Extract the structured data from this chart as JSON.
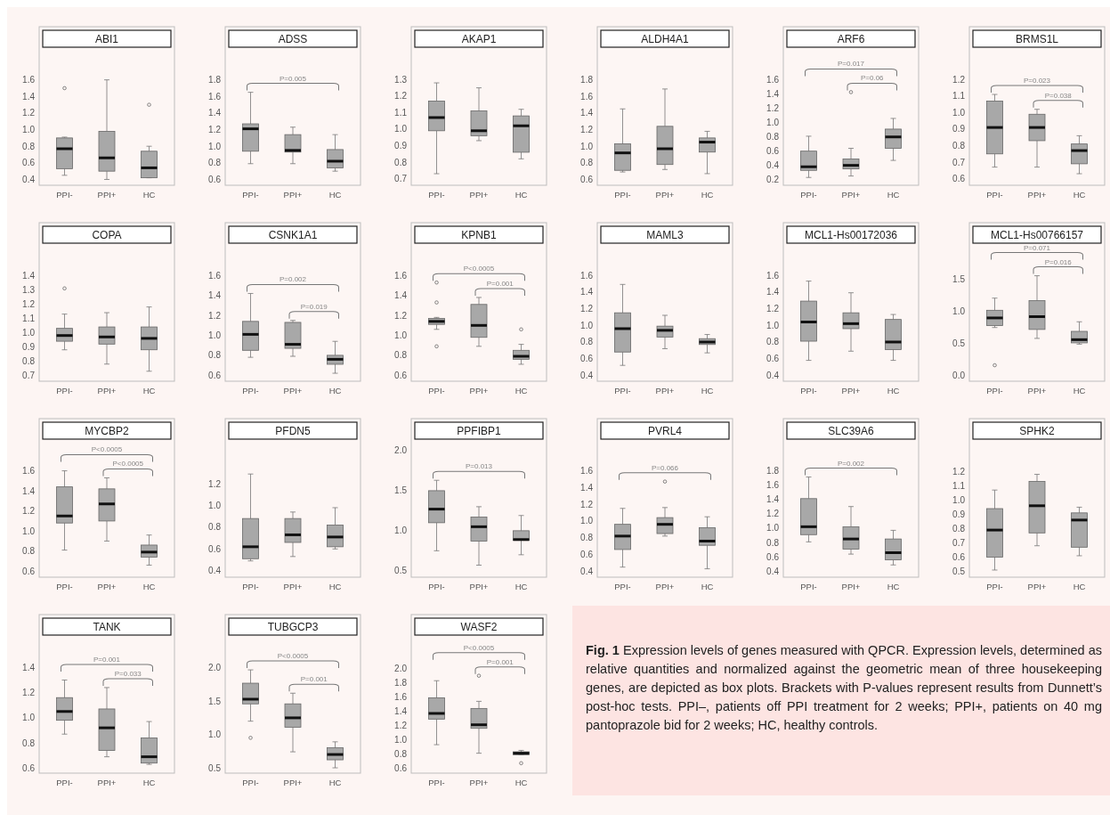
{
  "chart_data": [
    {
      "type": "box",
      "title": "ABI1",
      "categories": [
        "PPI-",
        "PPI+",
        "HC"
      ],
      "ylim": [
        0.33,
        2.24
      ],
      "yticks": [
        0.4,
        0.6,
        0.8,
        {
          "value": 1,
          "label": "1.0"
        },
        1.2,
        1.4,
        1.6
      ],
      "series": [
        {
          "color": "#a8a8a8",
          "boxes": [
            {
              "low": 0.45,
              "q1": 0.53,
              "median": 0.77,
              "q3": 0.9,
              "high": 0.91,
              "outliers": [
                1.5
              ]
            },
            {
              "low": 0.4,
              "q1": 0.5,
              "median": 0.66,
              "q3": 0.98,
              "high": 1.6
            },
            {
              "low": 0.42,
              "q1": 0.42,
              "median": 0.54,
              "q3": 0.74,
              "high": 0.8,
              "outliers": [
                1.3
              ]
            }
          ]
        }
      ]
    },
    {
      "type": "box",
      "title": "ADSS",
      "categories": [
        "PPI-",
        "PPI+",
        "HC"
      ],
      "ylim": [
        0.53,
        2.44
      ],
      "yticks": [
        0.6,
        0.8,
        {
          "value": 1,
          "label": "1.0"
        },
        1.2,
        1.4,
        1.6,
        1.8
      ],
      "annotations": [
        "P=0.005"
      ],
      "series": [
        {
          "color": "#a8a8a8",
          "boxes": [
            {
              "low": 0.79,
              "q1": 0.94,
              "median": 1.21,
              "q3": 1.27,
              "high": 1.65
            },
            {
              "low": 0.79,
              "q1": 0.93,
              "median": 0.95,
              "q3": 1.14,
              "high": 1.23
            },
            {
              "low": 0.7,
              "q1": 0.74,
              "median": 0.82,
              "q3": 0.96,
              "high": 1.14
            }
          ]
        }
      ]
    },
    {
      "type": "box",
      "title": "AKAP1",
      "categories": [
        "PPI-",
        "PPI+",
        "HC"
      ],
      "ylim": [
        0.66,
        1.62
      ],
      "yticks": [
        0.7,
        0.8,
        0.9,
        {
          "value": 1,
          "label": "1.0"
        },
        1.1,
        1.2,
        1.3
      ],
      "series": [
        {
          "color": "#a8a8a8",
          "boxes": [
            {
              "low": 0.73,
              "q1": 0.99,
              "median": 1.07,
              "q3": 1.17,
              "high": 1.28
            },
            {
              "low": 0.93,
              "q1": 0.96,
              "median": 0.99,
              "q3": 1.11,
              "high": 1.25
            },
            {
              "low": 0.82,
              "q1": 0.86,
              "median": 1.02,
              "q3": 1.08,
              "high": 1.12
            }
          ]
        }
      ]
    },
    {
      "type": "box",
      "title": "ALDH4A1",
      "categories": [
        "PPI-",
        "PPI+",
        "HC"
      ],
      "ylim": [
        0.53,
        2.44
      ],
      "yticks": [
        0.6,
        0.8,
        {
          "value": 1,
          "label": "1.0"
        },
        1.2,
        1.4,
        1.6,
        1.8
      ],
      "series": [
        {
          "color": "#a8a8a8",
          "boxes": [
            {
              "low": 0.69,
              "q1": 0.71,
              "median": 0.92,
              "q3": 1.03,
              "high": 1.45
            },
            {
              "low": 0.72,
              "q1": 0.78,
              "median": 0.97,
              "q3": 1.24,
              "high": 1.69
            },
            {
              "low": 0.67,
              "q1": 0.93,
              "median": 1.05,
              "q3": 1.1,
              "high": 1.18
            }
          ]
        }
      ]
    },
    {
      "type": "box",
      "title": "ARF6",
      "categories": [
        "PPI-",
        "PPI+",
        "HC"
      ],
      "ylim": [
        0.12,
        2.35
      ],
      "yticks": [
        0.2,
        0.4,
        0.6,
        0.8,
        {
          "value": 1,
          "label": "1.0"
        },
        1.2,
        1.4,
        1.6
      ],
      "annotations": [
        "P=0.017",
        "P=0.06"
      ],
      "series": [
        {
          "color": "#a8a8a8",
          "boxes": [
            {
              "low": 0.23,
              "q1": 0.33,
              "median": 0.38,
              "q3": 0.6,
              "high": 0.81
            },
            {
              "low": 0.25,
              "q1": 0.35,
              "median": 0.4,
              "q3": 0.49,
              "high": 0.64,
              "outliers": [
                1.43
              ]
            },
            {
              "low": 0.47,
              "q1": 0.64,
              "median": 0.8,
              "q3": 0.91,
              "high": 1.06
            }
          ]
        }
      ]
    },
    {
      "type": "box",
      "title": "BRMS1L",
      "categories": [
        "PPI-",
        "PPI+",
        "HC"
      ],
      "ylim": [
        0.56,
        1.52
      ],
      "yticks": [
        0.6,
        0.7,
        0.8,
        0.9,
        {
          "value": 1,
          "label": "1.0"
        },
        1.1,
        1.2
      ],
      "annotations": [
        "P=0.023",
        "P=0.038"
      ],
      "series": [
        {
          "color": "#a8a8a8",
          "boxes": [
            {
              "low": 0.67,
              "q1": 0.75,
              "median": 0.91,
              "q3": 1.07,
              "high": 1.11
            },
            {
              "low": 0.67,
              "q1": 0.83,
              "median": 0.91,
              "q3": 0.99,
              "high": 1.02
            },
            {
              "low": 0.63,
              "q1": 0.69,
              "median": 0.77,
              "q3": 0.81,
              "high": 0.86
            }
          ]
        }
      ]
    },
    {
      "type": "box",
      "title": "COPA",
      "categories": [
        "PPI-",
        "PPI+",
        "HC"
      ],
      "ylim": [
        0.66,
        1.77
      ],
      "yticks": [
        0.7,
        0.8,
        0.9,
        {
          "value": 1,
          "label": "1.0"
        },
        1.1,
        1.2,
        1.3,
        1.4
      ],
      "series": [
        {
          "color": "#a8a8a8",
          "boxes": [
            {
              "low": 0.88,
              "q1": 0.94,
              "median": 0.98,
              "q3": 1.03,
              "high": 1.13,
              "outliers": [
                1.31
              ]
            },
            {
              "low": 0.78,
              "q1": 0.92,
              "median": 0.97,
              "q3": 1.04,
              "high": 1.14
            },
            {
              "low": 0.73,
              "q1": 0.88,
              "median": 0.96,
              "q3": 1.04,
              "high": 1.18
            }
          ]
        }
      ]
    },
    {
      "type": "box",
      "title": "CSNK1A1",
      "categories": [
        "PPI-",
        "PPI+",
        "HC"
      ],
      "ylim": [
        0.54,
        2.13
      ],
      "yticks": [
        0.6,
        0.8,
        {
          "value": 1,
          "label": "1.0"
        },
        1.2,
        1.4,
        1.6
      ],
      "annotations": [
        "P=0.002",
        "P=0.019"
      ],
      "series": [
        {
          "color": "#a8a8a8",
          "boxes": [
            {
              "low": 0.78,
              "q1": 0.85,
              "median": 1.01,
              "q3": 1.14,
              "high": 1.42
            },
            {
              "low": 0.79,
              "q1": 0.87,
              "median": 0.91,
              "q3": 1.13,
              "high": 1.15
            },
            {
              "low": 0.62,
              "q1": 0.71,
              "median": 0.76,
              "q3": 0.8,
              "high": 0.94
            }
          ]
        }
      ]
    },
    {
      "type": "box",
      "title": "KPNB1",
      "categories": [
        "PPI-",
        "PPI+",
        "HC"
      ],
      "ylim": [
        0.54,
        2.13
      ],
      "yticks": [
        0.6,
        0.8,
        {
          "value": 1,
          "label": "1.0"
        },
        1.2,
        1.4,
        1.6
      ],
      "annotations": [
        "P<0.0005",
        "P=0.001"
      ],
      "series": [
        {
          "color": "#a8a8a8",
          "boxes": [
            {
              "low": 1.06,
              "q1": 1.11,
              "median": 1.14,
              "q3": 1.17,
              "high": 1.18,
              "outliers": [
                1.53,
                1.33,
                0.89
              ]
            },
            {
              "low": 0.89,
              "q1": 0.98,
              "median": 1.1,
              "q3": 1.31,
              "high": 1.38
            },
            {
              "low": 0.71,
              "q1": 0.76,
              "median": 0.79,
              "q3": 0.85,
              "high": 0.91,
              "outliers": [
                1.06
              ]
            }
          ]
        }
      ]
    },
    {
      "type": "box",
      "title": "MAML3",
      "categories": [
        "PPI-",
        "PPI+",
        "HC"
      ],
      "ylim": [
        0.33,
        2.23
      ],
      "yticks": [
        0.4,
        0.6,
        0.8,
        {
          "value": 1,
          "label": "1.0"
        },
        1.2,
        1.4,
        1.6
      ],
      "series": [
        {
          "color": "#a8a8a8",
          "boxes": [
            {
              "low": 0.52,
              "q1": 0.68,
              "median": 0.96,
              "q3": 1.15,
              "high": 1.49
            },
            {
              "low": 0.72,
              "q1": 0.86,
              "median": 0.94,
              "q3": 0.99,
              "high": 1.12
            },
            {
              "low": 0.67,
              "q1": 0.77,
              "median": 0.8,
              "q3": 0.84,
              "high": 0.89
            }
          ]
        }
      ]
    },
    {
      "type": "box",
      "title": "MCL1-Hs00172036",
      "categories": [
        "PPI-",
        "PPI+",
        "HC"
      ],
      "ylim": [
        0.33,
        2.23
      ],
      "yticks": [
        0.4,
        0.6,
        0.8,
        {
          "value": 1,
          "label": "1.0"
        },
        1.2,
        1.4,
        1.6
      ],
      "series": [
        {
          "color": "#a8a8a8",
          "boxes": [
            {
              "low": 0.58,
              "q1": 0.81,
              "median": 1.04,
              "q3": 1.29,
              "high": 1.53
            },
            {
              "low": 0.69,
              "q1": 0.96,
              "median": 1.02,
              "q3": 1.15,
              "high": 1.39
            },
            {
              "low": 0.58,
              "q1": 0.71,
              "median": 0.8,
              "q3": 1.07,
              "high": 1.13
            }
          ]
        }
      ]
    },
    {
      "type": "box",
      "title": "MCL1-Hs00766157",
      "categories": [
        "PPI-",
        "PPI+",
        "HC"
      ],
      "ylim": [
        -0.09,
        2.39
      ],
      "yticks": [
        {
          "value": 0,
          "label": "0.0"
        },
        0.5,
        {
          "value": 1,
          "label": "1.0"
        },
        1.5
      ],
      "annotations": [
        "P=0.071",
        "P=0.016"
      ],
      "series": [
        {
          "color": "#a8a8a8",
          "boxes": [
            {
              "low": 0.75,
              "q1": 0.78,
              "median": 0.9,
              "q3": 1.02,
              "high": 1.21,
              "outliers": [
                0.16
              ]
            },
            {
              "low": 0.58,
              "q1": 0.72,
              "median": 0.92,
              "q3": 1.17,
              "high": 1.56
            },
            {
              "low": 0.49,
              "q1": 0.51,
              "median": 0.56,
              "q3": 0.69,
              "high": 0.84
            }
          ]
        }
      ]
    },
    {
      "type": "box",
      "title": "MYCBP2",
      "categories": [
        "PPI-",
        "PPI+",
        "HC"
      ],
      "ylim": [
        0.54,
        2.12
      ],
      "yticks": [
        0.6,
        0.8,
        {
          "value": 1,
          "label": "1.0"
        },
        1.2,
        1.4,
        1.6
      ],
      "annotations": [
        "P<0.0005",
        "P<0.0005"
      ],
      "series": [
        {
          "color": "#a8a8a8",
          "boxes": [
            {
              "low": 0.81,
              "q1": 1.08,
              "median": 1.15,
              "q3": 1.44,
              "high": 1.6
            },
            {
              "low": 0.9,
              "q1": 1.1,
              "median": 1.27,
              "q3": 1.42,
              "high": 1.53
            },
            {
              "low": 0.66,
              "q1": 0.74,
              "median": 0.79,
              "q3": 0.86,
              "high": 0.96
            }
          ]
        }
      ]
    },
    {
      "type": "box",
      "title": "PFDN5",
      "categories": [
        "PPI-",
        "PPI+",
        "HC"
      ],
      "ylim": [
        0.34,
        1.8
      ],
      "yticks": [
        0.4,
        0.6,
        0.8,
        {
          "value": 1,
          "label": "1.0"
        },
        1.2
      ],
      "series": [
        {
          "color": "#a8a8a8",
          "boxes": [
            {
              "low": 0.49,
              "q1": 0.51,
              "median": 0.62,
              "q3": 0.88,
              "high": 1.29
            },
            {
              "low": 0.53,
              "q1": 0.66,
              "median": 0.73,
              "q3": 0.88,
              "high": 0.94
            },
            {
              "low": 0.6,
              "q1": 0.62,
              "median": 0.71,
              "q3": 0.82,
              "high": 0.98
            }
          ]
        }
      ]
    },
    {
      "type": "box",
      "title": "PPFIBP1",
      "categories": [
        "PPI-",
        "PPI+",
        "HC"
      ],
      "ylim": [
        0.42,
        2.4
      ],
      "yticks": [
        0.5,
        {
          "value": 1,
          "label": "1.0"
        },
        1.5,
        {
          "value": 2,
          "label": "2.0"
        }
      ],
      "annotations": [
        "P=0.013"
      ],
      "series": [
        {
          "color": "#a8a8a8",
          "boxes": [
            {
              "low": 0.75,
              "q1": 1.1,
              "median": 1.27,
              "q3": 1.5,
              "high": 1.63
            },
            {
              "low": 0.57,
              "q1": 0.87,
              "median": 1.05,
              "q3": 1.17,
              "high": 1.3
            },
            {
              "low": 0.7,
              "q1": 0.88,
              "median": 0.89,
              "q3": 1.0,
              "high": 1.19
            }
          ]
        }
      ]
    },
    {
      "type": "box",
      "title": "PVRL4",
      "categories": [
        "PPI-",
        "PPI+",
        "HC"
      ],
      "ylim": [
        0.33,
        2.22
      ],
      "yticks": [
        0.4,
        0.6,
        0.8,
        {
          "value": 1,
          "label": "1.0"
        },
        1.2,
        1.4,
        1.6
      ],
      "annotations": [
        "P=0.066"
      ],
      "series": [
        {
          "color": "#a8a8a8",
          "boxes": [
            {
              "low": 0.45,
              "q1": 0.66,
              "median": 0.82,
              "q3": 0.96,
              "high": 1.15
            },
            {
              "low": 0.82,
              "q1": 0.85,
              "median": 0.96,
              "q3": 1.04,
              "high": 1.16,
              "outliers": [
                1.47
              ]
            },
            {
              "low": 0.43,
              "q1": 0.71,
              "median": 0.76,
              "q3": 0.92,
              "high": 1.05
            }
          ]
        }
      ]
    },
    {
      "type": "box",
      "title": "SLC39A6",
      "categories": [
        "PPI-",
        "PPI+",
        "HC"
      ],
      "ylim": [
        0.32,
        2.52
      ],
      "yticks": [
        0.4,
        0.6,
        0.8,
        {
          "value": 1,
          "label": "1.0"
        },
        1.2,
        1.4,
        1.6,
        1.8
      ],
      "annotations": [
        "P=0.002"
      ],
      "series": [
        {
          "color": "#a8a8a8",
          "boxes": [
            {
              "low": 0.81,
              "q1": 0.91,
              "median": 1.02,
              "q3": 1.41,
              "high": 1.71
            },
            {
              "low": 0.64,
              "q1": 0.71,
              "median": 0.85,
              "q3": 1.02,
              "high": 1.3
            },
            {
              "low": 0.49,
              "q1": 0.56,
              "median": 0.66,
              "q3": 0.85,
              "high": 0.97
            }
          ]
        }
      ]
    },
    {
      "type": "box",
      "title": "SPHK2",
      "categories": [
        "PPI-",
        "PPI+",
        "HC"
      ],
      "ylim": [
        0.46,
        1.57
      ],
      "yticks": [
        0.5,
        0.6,
        0.7,
        0.8,
        0.9,
        {
          "value": 1,
          "label": "1.0"
        },
        1.1,
        1.2
      ],
      "series": [
        {
          "color": "#a8a8a8",
          "boxes": [
            {
              "low": 0.51,
              "q1": 0.6,
              "median": 0.79,
              "q3": 0.94,
              "high": 1.07
            },
            {
              "low": 0.68,
              "q1": 0.77,
              "median": 0.96,
              "q3": 1.13,
              "high": 1.18
            },
            {
              "low": 0.61,
              "q1": 0.67,
              "median": 0.86,
              "q3": 0.91,
              "high": 0.95
            }
          ]
        }
      ]
    },
    {
      "type": "box",
      "title": "TANK",
      "categories": [
        "PPI-",
        "PPI+",
        "HC"
      ],
      "ylim": [
        0.56,
        1.82
      ],
      "yticks": [
        0.6,
        0.8,
        {
          "value": 1,
          "label": "1.0"
        },
        1.2,
        1.4
      ],
      "annotations": [
        "P=0.001",
        "P=0.033"
      ],
      "series": [
        {
          "color": "#a8a8a8",
          "boxes": [
            {
              "low": 0.87,
              "q1": 0.98,
              "median": 1.05,
              "q3": 1.16,
              "high": 1.3
            },
            {
              "low": 0.69,
              "q1": 0.74,
              "median": 0.92,
              "q3": 1.07,
              "high": 1.24
            },
            {
              "low": 0.63,
              "q1": 0.64,
              "median": 0.69,
              "q3": 0.84,
              "high": 0.97
            }
          ]
        }
      ]
    },
    {
      "type": "box",
      "title": "TUBGCP3",
      "categories": [
        "PPI-",
        "PPI+",
        "HC"
      ],
      "ylim": [
        0.42,
        2.8
      ],
      "yticks": [
        0.5,
        {
          "value": 1,
          "label": "1.0"
        },
        1.5,
        {
          "value": 2,
          "label": "2.0"
        }
      ],
      "annotations": [
        "P<0.0005",
        "P=0.001"
      ],
      "series": [
        {
          "color": "#a8a8a8",
          "boxes": [
            {
              "low": 1.2,
              "q1": 1.46,
              "median": 1.53,
              "q3": 1.77,
              "high": 1.97,
              "outliers": [
                0.95
              ]
            },
            {
              "low": 0.74,
              "q1": 1.11,
              "median": 1.25,
              "q3": 1.46,
              "high": 1.62
            },
            {
              "low": 0.5,
              "q1": 0.62,
              "median": 0.7,
              "q3": 0.8,
              "high": 0.89
            }
          ]
        }
      ]
    },
    {
      "type": "box",
      "title": "WASF2",
      "categories": [
        "PPI-",
        "PPI+",
        "HC"
      ],
      "ylim": [
        0.53,
        2.76
      ],
      "yticks": [
        0.6,
        0.8,
        {
          "value": 1,
          "label": "1.0"
        },
        1.2,
        1.4,
        1.6,
        1.8,
        {
          "value": 2,
          "label": "2.0"
        }
      ],
      "annotations": [
        "P<0.0005",
        "P=0.001"
      ],
      "series": [
        {
          "color": "#a8a8a8",
          "boxes": [
            {
              "low": 0.93,
              "q1": 1.29,
              "median": 1.37,
              "q3": 1.59,
              "high": 1.83
            },
            {
              "low": 0.81,
              "q1": 1.16,
              "median": 1.21,
              "q3": 1.44,
              "high": 1.54,
              "outliers": [
                1.9
              ]
            },
            {
              "low": 0.79,
              "q1": 0.79,
              "median": 0.81,
              "q3": 0.83,
              "high": 0.85,
              "outliers": [
                0.67
              ]
            }
          ]
        }
      ]
    },
    {
      "type": "other",
      "title": "Fig. 1",
      "annotations": [
        "Expression levels of genes measured with QPCR. Expression levels, determined as relative quantities and normalized against the geometric mean of three housekeeping genes, are depicted as box plots. Brackets with P-values represent results from Dunnett’s post-hoc tests. PPI–, patients off PPI treatment for 2 weeks; PPI+, patients on 40 mg pantoprazole bid for 2 weeks; HC, healthy controls."
      ]
    }
  ]
}
